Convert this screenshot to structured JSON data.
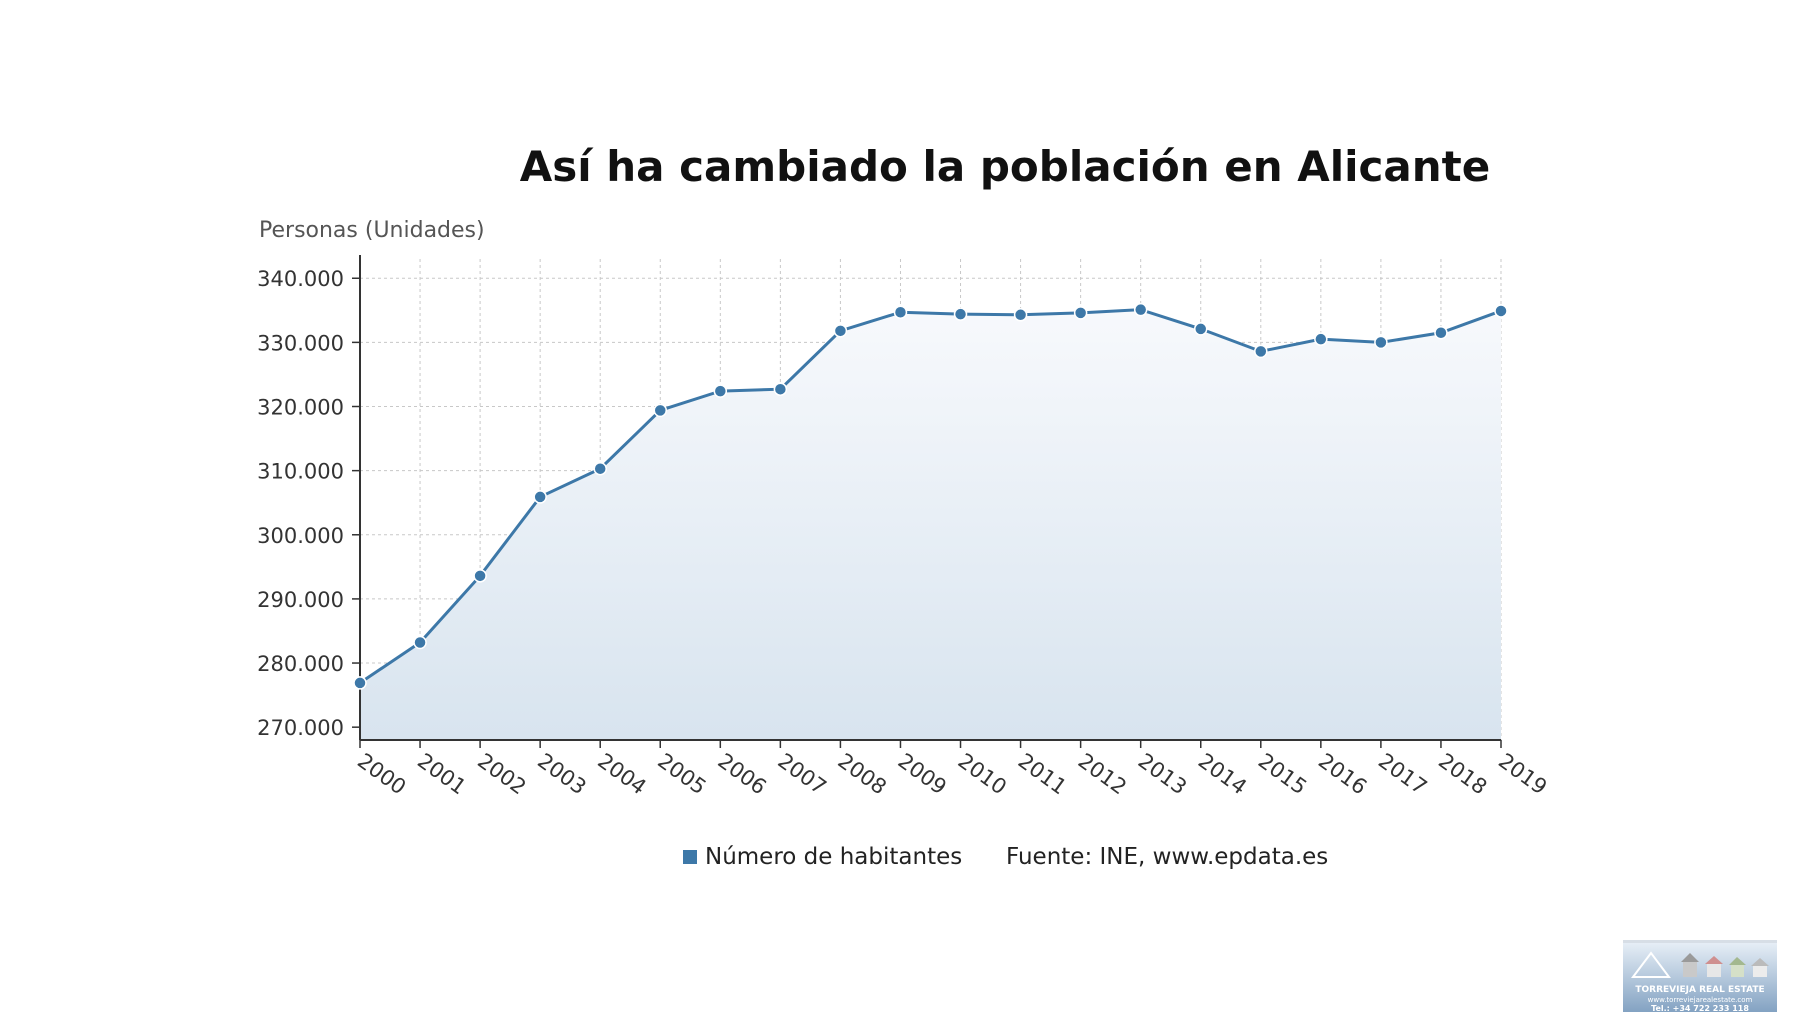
{
  "chart_data": {
    "type": "area",
    "title": "Así ha cambiado la población en Alicante",
    "ylabel": "Personas (Unidades)",
    "xlabel": "",
    "ylim": [
      268000,
      343000
    ],
    "grid": true,
    "legend_placement": "bottom",
    "y_ticks": [
      270000,
      280000,
      290000,
      300000,
      310000,
      320000,
      330000,
      340000
    ],
    "y_tick_labels": [
      "270.000",
      "280.000",
      "290.000",
      "300.000",
      "310.000",
      "320.000",
      "330.000",
      "340.000"
    ],
    "x": [
      "2000",
      "2001",
      "2002",
      "2003",
      "2004",
      "2005",
      "2006",
      "2007",
      "2008",
      "2009",
      "2010",
      "2011",
      "2012",
      "2013",
      "2014",
      "2015",
      "2016",
      "2017",
      "2018",
      "2019"
    ],
    "series": [
      {
        "name": "Número de habitantes",
        "values": [
          276900,
          283200,
          293600,
          305900,
          310300,
          319400,
          322400,
          322700,
          331800,
          334700,
          334400,
          334300,
          334600,
          335100,
          332100,
          328600,
          330500,
          330000,
          331500,
          334900
        ],
        "color": "#3d78a8"
      }
    ],
    "source": "Fuente: INE, www.epdata.es"
  },
  "watermark": {
    "name": "TORREVIEJA REAL ESTATE",
    "web": "www.torreviejarealestate.com",
    "tel": "Tel.: +34 722 233 118"
  },
  "colors": {
    "line": "#3d78a8",
    "fill_top": "#f7f9fc",
    "fill_bottom": "#d8e4ef",
    "grid": "#c8c8c8",
    "axis": "#333333"
  }
}
